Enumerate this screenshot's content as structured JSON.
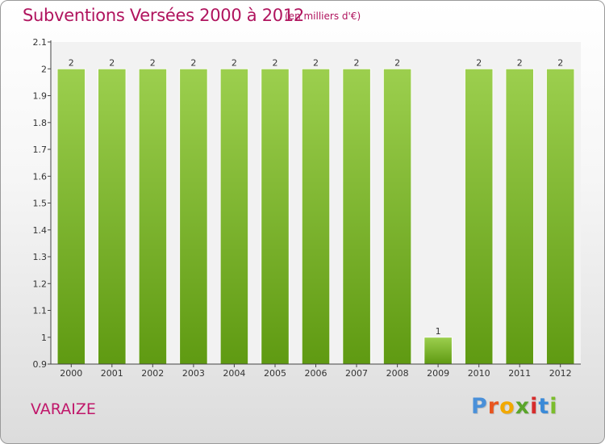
{
  "header": {
    "title": "Subventions Versées 2000 à 2012",
    "unit": "(en milliers d'€)"
  },
  "footer": {
    "place": "VARAIZE",
    "logo": "Proxiti",
    "logo_colors": [
      "#4a90d9",
      "#e8551f",
      "#f2a900",
      "#5aa52a",
      "#d62c2c",
      "#3a8ad8",
      "#7bbd2c"
    ]
  },
  "chart_data": {
    "type": "bar",
    "categories": [
      "2000",
      "2001",
      "2002",
      "2003",
      "2004",
      "2005",
      "2006",
      "2007",
      "2008",
      "2009",
      "2010",
      "2011",
      "2012"
    ],
    "values": [
      2,
      2,
      2,
      2,
      2,
      2,
      2,
      2,
      2,
      1,
      2,
      2,
      2
    ],
    "labels": [
      "2",
      "2",
      "2",
      "2",
      "2",
      "2",
      "2",
      "2",
      "2",
      "1",
      "2",
      "2",
      "2"
    ],
    "title": "Subventions Versées 2000 à 2012",
    "ylim": [
      0.9,
      2.1
    ],
    "yticks": [
      "0.9",
      "1",
      "1.1",
      "1.2",
      "1.3",
      "1.4",
      "1.5",
      "1.6",
      "1.7",
      "1.8",
      "1.9",
      "2",
      "2.1"
    ],
    "grid": false,
    "bar_color_top": "#9ccf4e",
    "bar_color_bottom": "#5f9a12"
  }
}
